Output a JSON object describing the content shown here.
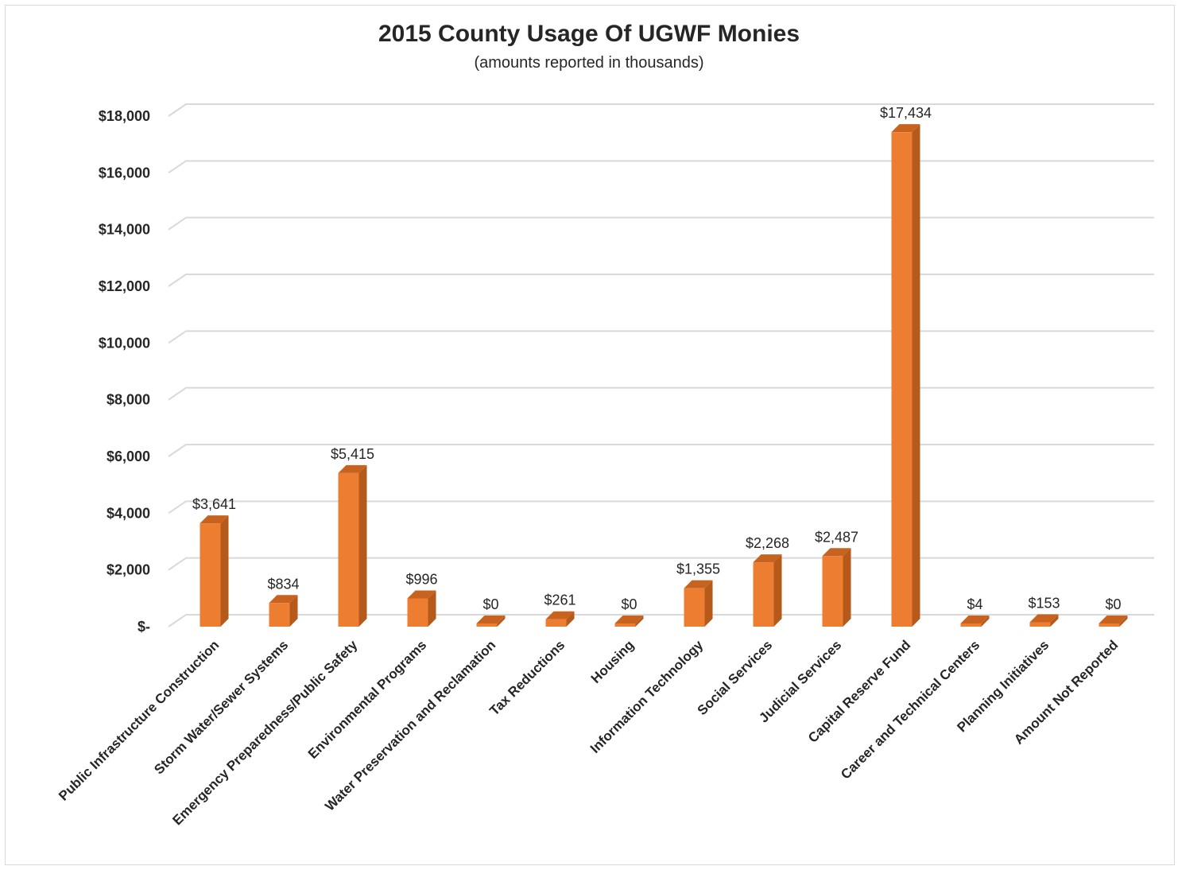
{
  "chart_data": {
    "type": "bar",
    "title": "2015 County Usage Of UGWF Monies",
    "subtitle": "(amounts reported in thousands)",
    "xlabel": "",
    "ylabel": "",
    "ylim": [
      0,
      18000
    ],
    "ytick_values": [
      0,
      2000,
      4000,
      6000,
      8000,
      10000,
      12000,
      14000,
      16000,
      18000
    ],
    "ytick_labels": [
      "$-",
      "$2,000",
      "$4,000",
      "$6,000",
      "$8,000",
      "$10,000",
      "$12,000",
      "$14,000",
      "$16,000",
      "$18,000"
    ],
    "categories": [
      "Public Infrastructure Construction",
      "Storm Water/Sewer Systems",
      "Emergency Preparedness/Public Safety",
      "Environmental Programs",
      "Water Preservation and Reclamation",
      "Tax Reductions",
      "Housing",
      "Information Technology",
      "Social Services",
      "Judicial Services",
      "Capital Reserve Fund",
      "Career and Technical Centers",
      "Planning Initiatives",
      "Amount Not Reported"
    ],
    "values": [
      3641,
      834,
      5415,
      996,
      0,
      261,
      0,
      1355,
      2268,
      2487,
      17434,
      4,
      153,
      0
    ],
    "data_labels": [
      "$3,641",
      "$834",
      "$5,415",
      "$996",
      "$0",
      "$261",
      "$0",
      "$1,355",
      "$2,268",
      "$2,487",
      "$17,434",
      "$4",
      "$153",
      "$0"
    ],
    "grid": true,
    "bar_style": "3d-column",
    "colors": {
      "bar_front": "#ed7d31",
      "bar_side": "#b65a1c",
      "bar_top": "#c8621f",
      "grid": "#d9d9d9",
      "text": "#262626"
    }
  }
}
